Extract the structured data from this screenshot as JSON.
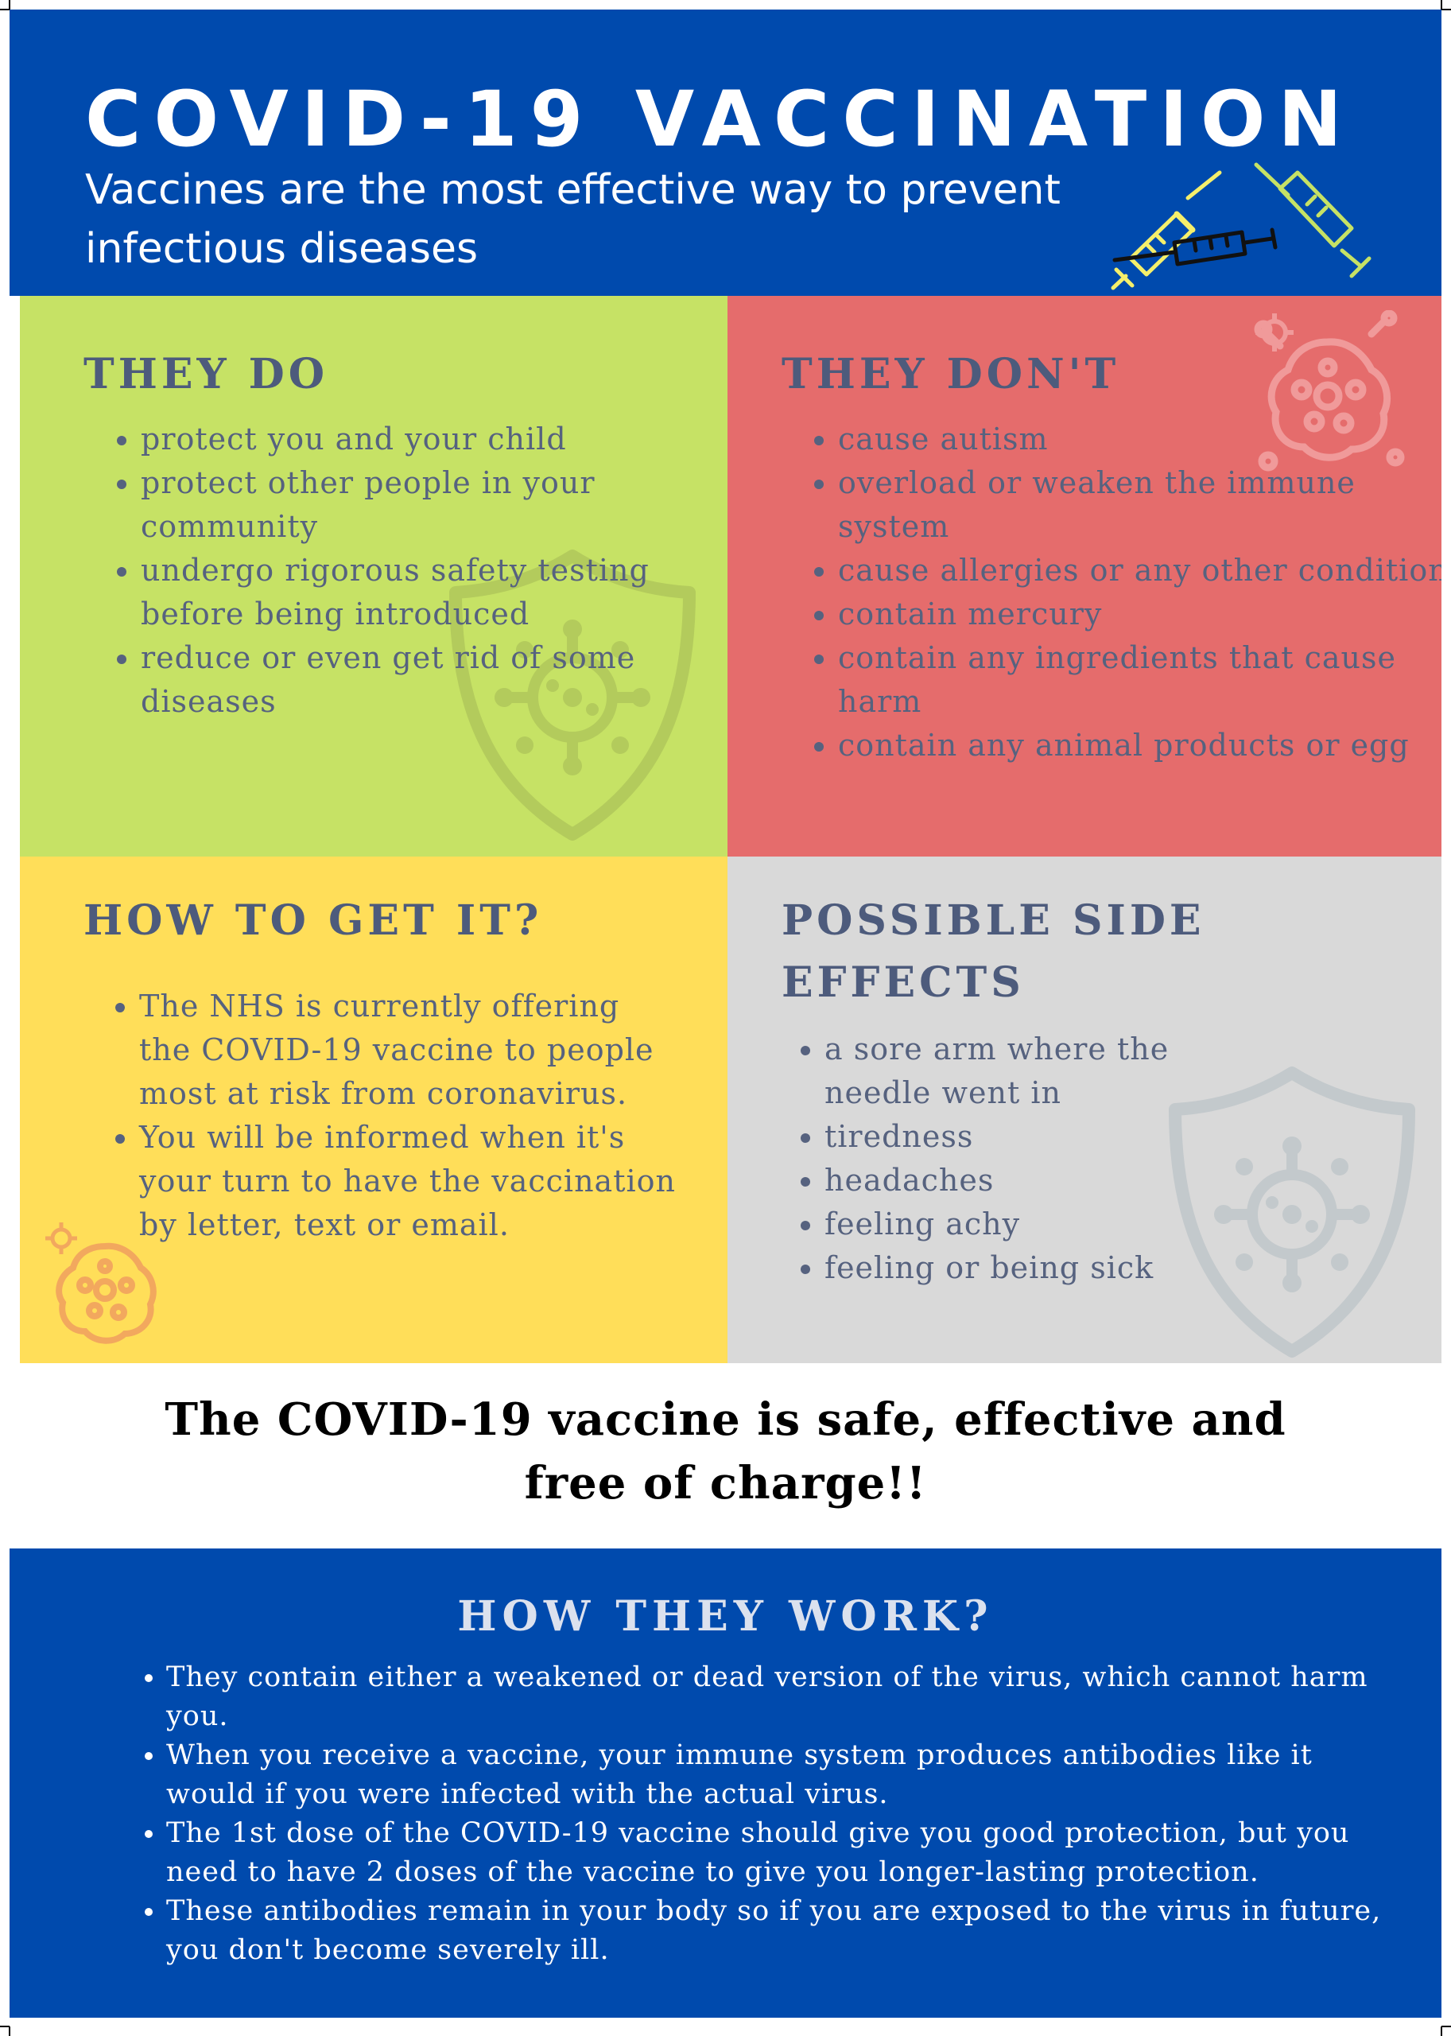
{
  "header": {
    "title": "COVID-19 VACCINATION",
    "subtitle": "Vaccines are the most effective way to prevent infectious diseases"
  },
  "they_do": {
    "heading": "THEY DO",
    "items": [
      "protect you and your child",
      "protect other people in your community",
      "undergo rigorous safety testing before being introduced",
      "reduce or even get rid of some diseases"
    ]
  },
  "they_dont": {
    "heading": "THEY DON'T",
    "items": [
      "cause autism",
      "overload or weaken the immune system",
      "cause allergies or any other conditions",
      "contain mercury",
      "contain any ingredients that cause harm",
      "contain any animal products or egg"
    ]
  },
  "how_to_get": {
    "heading": "HOW TO GET IT?",
    "items": [
      "The NHS is currently offering the COVID-19 vaccine to people most at risk from coronavirus.",
      "You will be informed when it's your turn to have the vaccination by letter, text or email."
    ]
  },
  "side_effects": {
    "heading": "POSSIBLE SIDE EFFECTS",
    "items": [
      "a sore arm where the needle went in",
      "tiredness",
      "headaches",
      "feeling achy",
      "feeling or being sick"
    ]
  },
  "tagline": "The COVID-19 vaccine is safe, effective and free of charge!!",
  "how_they_work": {
    "heading": "HOW THEY WORK?",
    "items": [
      "They contain either a weakened or dead version of the virus,  which cannot harm you.",
      "When you receive a vaccine, your immune system produces antibodies like it would if you were infected with the actual virus.",
      "The 1st dose of the COVID-19 vaccine should give you good protection, but you need to have 2 doses of the vaccine to give you longer-lasting protection.",
      "These antibodies remain in your body so if you are exposed to the virus in future, you don't become severely ill."
    ]
  },
  "colors": {
    "blue": "#004aad",
    "green": "#c6e265",
    "red": "#e56c6c",
    "yellow": "#ffde59",
    "grey": "#d9d9d9",
    "heading_text": "#4d5b7c"
  },
  "icons": [
    "syringe-icon",
    "shield-virus-icon",
    "virus-icon"
  ]
}
